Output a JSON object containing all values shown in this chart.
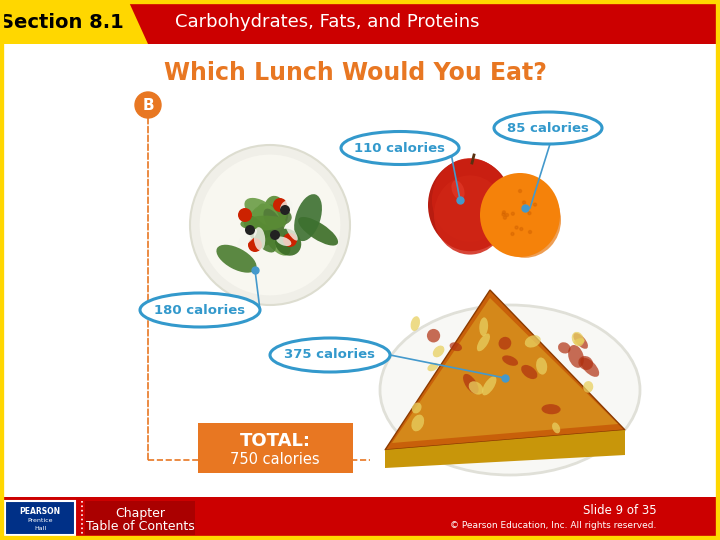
{
  "title_section": "Section 8.1",
  "title_main": "Carbohydrates, Fats, and Proteins",
  "slide_title": "Which Lunch Would You Eat?",
  "label_B": "B",
  "calories": {
    "salad": "180 calories",
    "apple": "110 calories",
    "orange": "85 calories",
    "pizza": "375 calories"
  },
  "total_label": "TOTAL:",
  "total_value": "750 calories",
  "slide_number": "Slide 9 of 35",
  "footer_left1": "Chapter",
  "footer_left2": "Table of Contents",
  "copyright": "© Pearson Education, Inc. All rights reserved.",
  "colors": {
    "header_red": "#CC0000",
    "section_label_bg": "#FFD700",
    "section_label_text": "#000000",
    "header_text": "#FFFFFF",
    "slide_title_color": "#E87722",
    "label_B_bg": "#E87722",
    "label_B_text": "#FFFFFF",
    "calorie_bubble_border": "#3399CC",
    "calorie_bubble_text": "#3399CC",
    "calorie_bubble_fill": "#FFFFFF",
    "dashed_line": "#E87722",
    "total_bg": "#E87722",
    "total_text": "#FFFFFF",
    "footer_bg": "#CC0000",
    "footer_text": "#FFFFFF",
    "slide_bg": "#FFFFFF",
    "border_yellow": "#FFD700",
    "dot_color": "#4499CC",
    "pearson_blue": "#003087",
    "chapter_bg": "#AA0000"
  }
}
